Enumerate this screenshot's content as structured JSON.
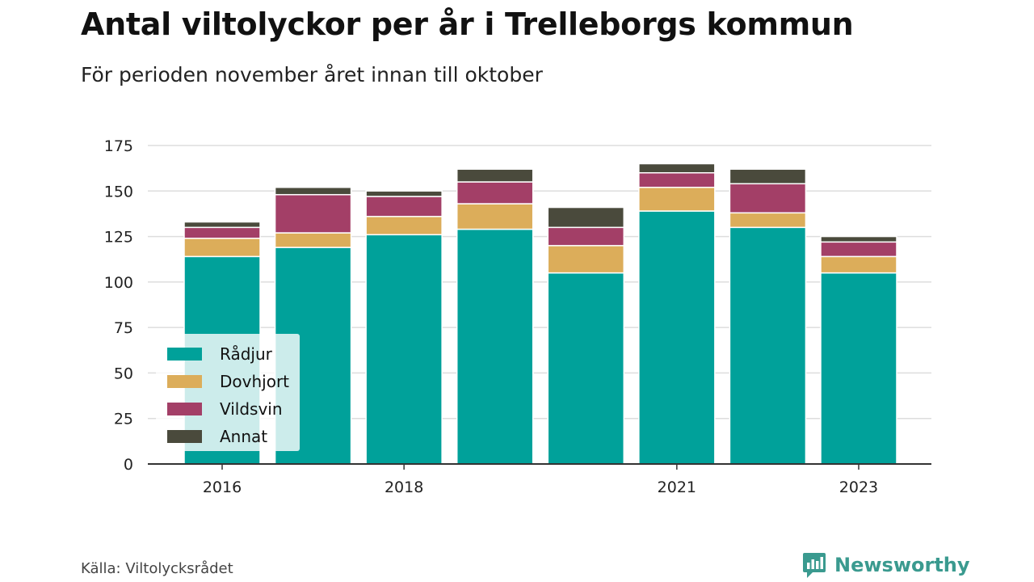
{
  "header": {
    "title": "Antal viltolyckor per år i Trelleborgs kommun",
    "subtitle": "För perioden november året innan till oktober"
  },
  "footer": {
    "source": "Källa: Viltolycksrådet",
    "brand": "Newsworthy"
  },
  "colors": {
    "Rådjur": "#00a19a",
    "Dovhjort": "#dcad5a",
    "Vildsvin": "#a33f67",
    "Annat": "#4a4a3c",
    "grid": "#dddddd",
    "axis": "#333333",
    "brand": "#3a9a8f"
  },
  "chart_data": {
    "type": "bar",
    "stacked": true,
    "title": "Antal viltolyckor per år i Trelleborgs kommun",
    "subtitle": "För perioden november året innan till oktober",
    "categories": [
      "2016",
      "2017",
      "2018",
      "2019",
      "2020",
      "2021",
      "2022",
      "2023"
    ],
    "x_tick_labels": [
      "2016",
      "",
      "2018",
      "",
      "",
      "2021",
      "",
      "2023"
    ],
    "series": [
      {
        "name": "Rådjur",
        "values": [
          114,
          119,
          126,
          129,
          105,
          139,
          130,
          105
        ]
      },
      {
        "name": "Dovhjort",
        "values": [
          10,
          8,
          10,
          14,
          15,
          13,
          8,
          9
        ]
      },
      {
        "name": "Vildsvin",
        "values": [
          6,
          21,
          11,
          12,
          10,
          8,
          16,
          8
        ]
      },
      {
        "name": "Annat",
        "values": [
          3,
          4,
          3,
          7,
          11,
          5,
          8,
          3
        ]
      }
    ],
    "ylim": [
      0,
      175
    ],
    "yticks": [
      0,
      25,
      50,
      75,
      100,
      125,
      150,
      175
    ],
    "xlabel": "",
    "ylabel": "",
    "grid": true,
    "legend": "bottom-left"
  }
}
